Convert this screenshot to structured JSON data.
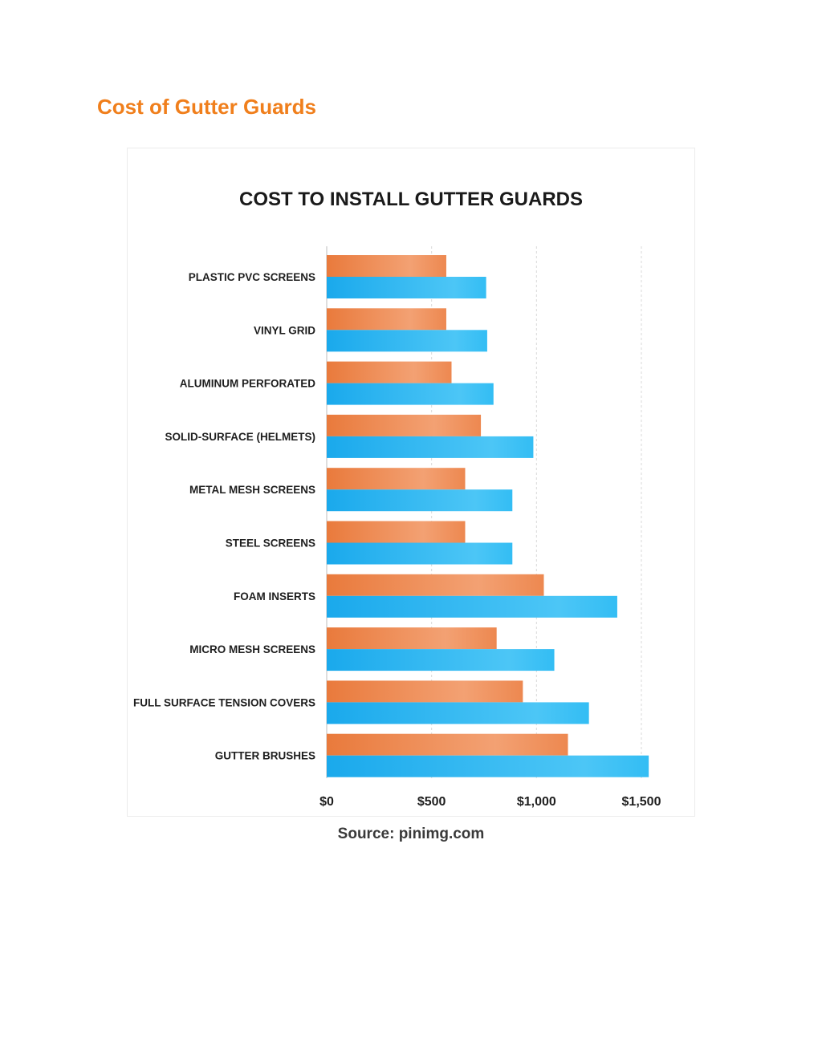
{
  "page": {
    "heading": "Cost of Gutter Guards",
    "caption": "Source: pinimg.com"
  },
  "colors": {
    "heading": "#f07f1c",
    "low_bar": "#ef8a4a",
    "high_bar": "#2bb6f2"
  },
  "chart_data": {
    "type": "bar",
    "orientation": "horizontal",
    "title": "COST TO INSTALL GUTTER GUARDS",
    "xlabel": "",
    "ylabel": "",
    "categories": [
      "PLASTIC PVC SCREENS",
      "VINYL GRID",
      "ALUMINUM PERFORATED",
      "SOLID-SURFACE (HELMETS)",
      "METAL MESH SCREENS",
      "STEEL SCREENS",
      "FOAM INSERTS",
      "MICRO MESH SCREENS",
      "FULL SURFACE TENSION COVERS",
      "GUTTER BRUSHES"
    ],
    "series": [
      {
        "color": "#ef8a4a",
        "values": [
          570,
          570,
          595,
          735,
          660,
          660,
          1035,
          810,
          935,
          1150
        ]
      },
      {
        "color": "#2bb6f2",
        "values": [
          760,
          765,
          795,
          985,
          885,
          885,
          1385,
          1085,
          1250,
          1535
        ]
      }
    ],
    "xlim": [
      0,
      1500
    ],
    "xticks": [
      0,
      500,
      1000,
      1500
    ],
    "xtick_labels": [
      "$0",
      "$500",
      "$1,000",
      "$1,500"
    ],
    "grid": true,
    "legend": "none"
  }
}
